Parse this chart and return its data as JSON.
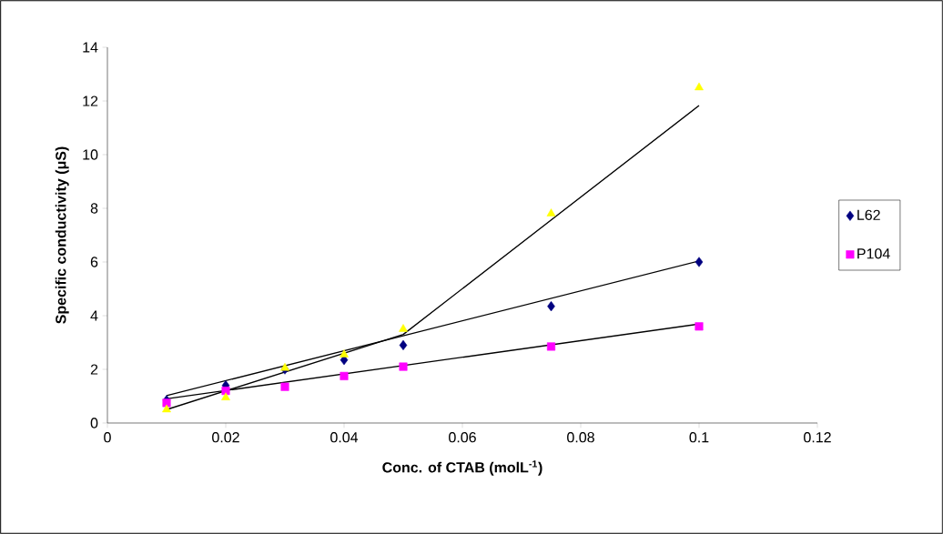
{
  "chart_data": {
    "type": "scatter",
    "xlabel": "Conc. of CTAB (molL$^{-1}$)",
    "ylabel": "Specific conductivity (μS)",
    "x": [
      0.01,
      0.02,
      0.03,
      0.04,
      0.05,
      0.075,
      0.1
    ],
    "xlim": [
      0,
      0.12
    ],
    "xticks": [
      0,
      0.02,
      0.04,
      0.06,
      0.08,
      0.1,
      0.12
    ],
    "ylim": [
      0,
      14
    ],
    "yticks": [
      0,
      2,
      4,
      6,
      8,
      10,
      12,
      14
    ],
    "grid": false,
    "legend": "right",
    "series": [
      {
        "name": "L62",
        "color": "#000080",
        "marker": "diamond",
        "values": [
          0.85,
          1.4,
          2.0,
          2.35,
          2.9,
          4.35,
          6.0
        ]
      },
      {
        "name": "P104",
        "color": "#ff00ff",
        "marker": "square",
        "values": [
          0.75,
          1.2,
          1.35,
          1.75,
          2.1,
          2.85,
          3.6
        ]
      },
      {
        "color": "#ffff00",
        "marker": "triangle",
        "values": [
          0.5,
          0.95,
          2.05,
          2.55,
          3.5,
          7.8,
          12.5
        ]
      },
      {
        "type": "line",
        "color": "#000000",
        "marker": "none",
        "x": [
          0.01,
          0.1
        ],
        "values": [
          1.02,
          6.04
        ]
      },
      {
        "type": "line",
        "color": "#000000",
        "marker": "none",
        "x": [
          0.01,
          0.1
        ],
        "values": [
          0.9,
          3.69
        ]
      },
      {
        "type": "line",
        "color": "#000000",
        "marker": "none",
        "x": [
          0.01,
          0.05,
          0.1
        ],
        "values": [
          0.5,
          3.3,
          11.83
        ]
      }
    ]
  }
}
